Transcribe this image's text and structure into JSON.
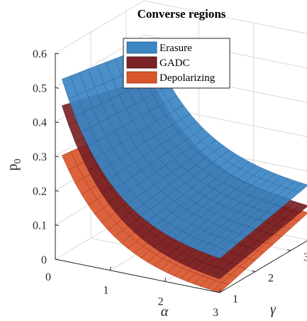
{
  "chart_data": {
    "type": "surface3d",
    "title": "Converse regions",
    "xlabel": "α",
    "ylabel": "γ",
    "zlabel": "p",
    "zlabel_sub": "0",
    "x_ticks": [
      "1",
      "2",
      "3"
    ],
    "y_ticks": [
      "1",
      "2",
      "3"
    ],
    "z_ticks": [
      "0",
      "0.1",
      "0.2",
      "0.3",
      "0.4",
      "0.5",
      "0.6"
    ],
    "x_origin_tick": "0",
    "xlim": [
      0,
      3
    ],
    "ylim": [
      1,
      3.5
    ],
    "zlim": [
      0,
      0.6
    ],
    "grid": true,
    "legend_position": "top-center",
    "series": [
      {
        "name": "Erasure",
        "color": "#3c86c4",
        "edge_color": "#1f5d91",
        "corner_values": {
          "alpha_min": 0.59,
          "alpha_max_gamma_min": 0.1,
          "alpha_max_gamma_max": 0.16,
          "alpha_min_gamma_max": 0.52
        }
      },
      {
        "name": "GADC",
        "color": "#7a2226",
        "edge_color": "#4a1215",
        "corner_values": {
          "alpha_min": 0.51,
          "alpha_max_gamma_min": 0.04,
          "alpha_max_gamma_max": 0.1,
          "alpha_min_gamma_max": 0.42
        }
      },
      {
        "name": "Depolarizing",
        "color": "#d9562c",
        "edge_color": "#8f3014",
        "corner_values": {
          "alpha_min": 0.35,
          "alpha_max_gamma_min": 0.0,
          "alpha_max_gamma_max": 0.08,
          "alpha_min_gamma_max": 0.3
        }
      }
    ]
  }
}
